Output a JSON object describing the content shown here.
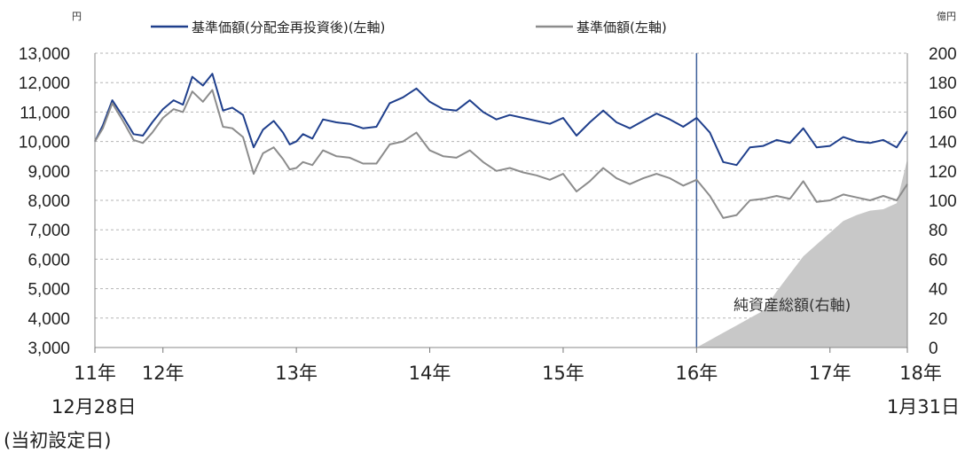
{
  "chart_data": {
    "type": "line",
    "left_axis": {
      "unit": "円",
      "ylim": [
        3000,
        13000
      ],
      "ticks": [
        "3,000",
        "4,000",
        "5,000",
        "6,000",
        "7,000",
        "8,000",
        "9,000",
        "10,000",
        "11,000",
        "12,000",
        "13,000"
      ]
    },
    "right_axis": {
      "unit": "億円",
      "ylim": [
        0,
        200
      ],
      "ticks": [
        "0",
        "20",
        "40",
        "60",
        "80",
        "100",
        "120",
        "140",
        "160",
        "180",
        "200"
      ]
    },
    "x_axis": {
      "range": [
        2011.99,
        2018.08
      ],
      "ticks": [
        {
          "t": 2011.99,
          "lines": [
            "11年",
            "12月28日",
            "(当初設定日)"
          ]
        },
        {
          "t": 2012.5,
          "lines": [
            "12年"
          ]
        },
        {
          "t": 2013.5,
          "lines": [
            "13年"
          ]
        },
        {
          "t": 2014.5,
          "lines": [
            "14年"
          ]
        },
        {
          "t": 2015.5,
          "lines": [
            "15年"
          ]
        },
        {
          "t": 2016.5,
          "lines": [
            "16年"
          ]
        },
        {
          "t": 2017.5,
          "lines": [
            "17年"
          ]
        },
        {
          "t": 2018.08,
          "lines": [
            "18年",
            "1月31日"
          ]
        }
      ]
    },
    "grid": true,
    "vertical_marker": 2016.5,
    "series": [
      {
        "name": "基準価額(分配金再投資後)(左軸)",
        "axis": "left",
        "color": "#1f3f8c",
        "x": [
          2011.99,
          2012.05,
          2012.12,
          2012.2,
          2012.28,
          2012.35,
          2012.42,
          2012.5,
          2012.58,
          2012.65,
          2012.72,
          2012.8,
          2012.87,
          2012.95,
          2013.02,
          2013.1,
          2013.18,
          2013.25,
          2013.33,
          2013.4,
          2013.45,
          2013.5,
          2013.55,
          2013.62,
          2013.7,
          2013.8,
          2013.9,
          2014.0,
          2014.1,
          2014.2,
          2014.3,
          2014.4,
          2014.5,
          2014.6,
          2014.7,
          2014.8,
          2014.9,
          2015.0,
          2015.1,
          2015.2,
          2015.3,
          2015.4,
          2015.5,
          2015.6,
          2015.7,
          2015.8,
          2015.9,
          2016.0,
          2016.1,
          2016.2,
          2016.3,
          2016.4,
          2016.5,
          2016.6,
          2016.7,
          2016.8,
          2016.9,
          2017.0,
          2017.1,
          2017.2,
          2017.3,
          2017.4,
          2017.5,
          2017.6,
          2017.7,
          2017.8,
          2017.9,
          2018.0,
          2018.08
        ],
        "y": [
          10000,
          10550,
          11400,
          10850,
          10250,
          10200,
          10650,
          11100,
          11400,
          11250,
          12200,
          11900,
          12300,
          11050,
          11150,
          10900,
          9800,
          10400,
          10700,
          10300,
          9900,
          10000,
          10250,
          10100,
          10750,
          10650,
          10600,
          10450,
          10500,
          11300,
          11500,
          11800,
          11350,
          11100,
          11050,
          11400,
          11000,
          10750,
          10900,
          10800,
          10700,
          10600,
          10800,
          10200,
          10650,
          11050,
          10650,
          10450,
          10700,
          10950,
          10750,
          10500,
          10800,
          10300,
          9300,
          9200,
          9800,
          9850,
          10050,
          9950,
          10450,
          9800,
          9850,
          10150,
          10000,
          9950,
          10050,
          9800,
          10350
        ]
      },
      {
        "name": "基準価額(左軸)",
        "axis": "left",
        "color": "#8c8c8c",
        "x": [
          2011.99,
          2012.05,
          2012.12,
          2012.2,
          2012.28,
          2012.35,
          2012.42,
          2012.5,
          2012.58,
          2012.65,
          2012.72,
          2012.8,
          2012.87,
          2012.95,
          2013.02,
          2013.1,
          2013.18,
          2013.25,
          2013.33,
          2013.4,
          2013.45,
          2013.5,
          2013.55,
          2013.62,
          2013.7,
          2013.8,
          2013.9,
          2014.0,
          2014.1,
          2014.2,
          2014.3,
          2014.4,
          2014.5,
          2014.6,
          2014.7,
          2014.8,
          2014.9,
          2015.0,
          2015.1,
          2015.2,
          2015.3,
          2015.4,
          2015.5,
          2015.6,
          2015.7,
          2015.8,
          2015.9,
          2016.0,
          2016.1,
          2016.2,
          2016.3,
          2016.4,
          2016.5,
          2016.6,
          2016.7,
          2016.8,
          2016.9,
          2017.0,
          2017.1,
          2017.2,
          2017.3,
          2017.4,
          2017.5,
          2017.6,
          2017.7,
          2017.8,
          2017.9,
          2018.0,
          2018.08
        ],
        "y": [
          10000,
          10450,
          11300,
          10700,
          10050,
          9950,
          10300,
          10800,
          11100,
          11000,
          11700,
          11350,
          11750,
          10500,
          10450,
          10150,
          8900,
          9600,
          9800,
          9400,
          9050,
          9100,
          9300,
          9200,
          9700,
          9500,
          9450,
          9250,
          9250,
          9900,
          10000,
          10300,
          9700,
          9500,
          9450,
          9700,
          9300,
          9000,
          9100,
          8950,
          8850,
          8700,
          8900,
          8300,
          8650,
          9100,
          8750,
          8550,
          8750,
          8900,
          8750,
          8500,
          8700,
          8150,
          7400,
          7500,
          8000,
          8050,
          8150,
          8050,
          8650,
          7950,
          8000,
          8200,
          8100,
          8000,
          8150,
          8000,
          8550
        ]
      },
      {
        "name": "純資産総額(右軸)",
        "axis": "right",
        "type": "area",
        "color": "#c8c8c8",
        "x": [
          2016.5,
          2016.6,
          2016.7,
          2016.8,
          2016.9,
          2017.0,
          2017.1,
          2017.2,
          2017.3,
          2017.4,
          2017.5,
          2017.6,
          2017.7,
          2017.8,
          2017.9,
          2018.0,
          2018.08
        ],
        "y": [
          0,
          5,
          10,
          15,
          20,
          25,
          38,
          50,
          62,
          70,
          78,
          86,
          90,
          93,
          94,
          98,
          128
        ]
      }
    ],
    "annotations": [
      {
        "text": "純資産総額(右軸)"
      }
    ]
  }
}
